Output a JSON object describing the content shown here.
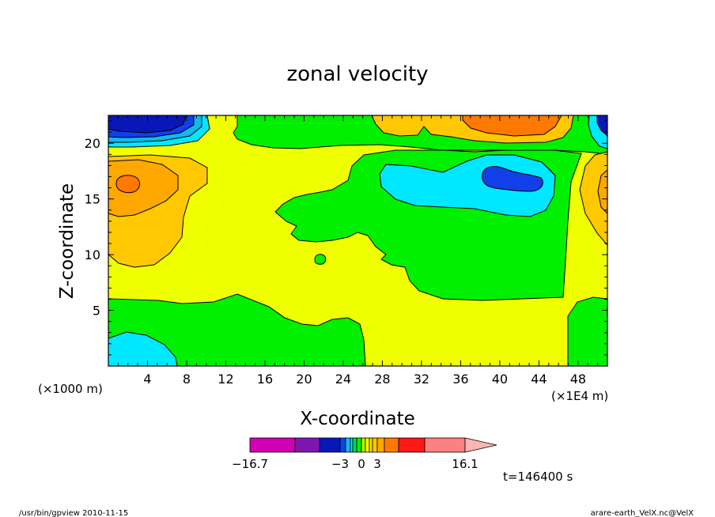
{
  "chart_data": {
    "type": "heatmap",
    "title": "zonal velocity",
    "xlabel": "X-coordinate",
    "ylabel": "Z-coordinate",
    "x_ticks": [
      "4",
      "8",
      "12",
      "16",
      "20",
      "24",
      "28",
      "32",
      "36",
      "40",
      "44",
      "48"
    ],
    "y_ticks": [
      "5",
      "10",
      "15",
      "20"
    ],
    "xlim": [
      0,
      51
    ],
    "ylim": [
      0,
      22.5
    ],
    "x_unit": "(×1E4 m)",
    "y_unit": "(×1000 m)",
    "colorbar": {
      "tick_labels": [
        "−16.7",
        "−3",
        "0",
        "3",
        "16.1"
      ],
      "min": -16.7,
      "max": 16.1,
      "colors": [
        "#d000b4",
        "#7d16b0",
        "#0a17b8",
        "#1240e8",
        "#12b8ee",
        "#00e8ff",
        "#00dc50",
        "#00f000",
        "#b8f000",
        "#f0ff00",
        "#ffe000",
        "#ffc800",
        "#ffa800",
        "#ff7800",
        "#ff1818",
        "#ff8080",
        "#ffb4b4"
      ]
    },
    "regions": [
      {
        "feature": "minimum",
        "x": 4,
        "z": 22,
        "range": "≈ −16 to −9"
      },
      {
        "feature": "maximum",
        "x": 2,
        "z": 16.5,
        "range": "≈ 4 to 6"
      },
      {
        "feature": "minimum",
        "x": 41,
        "z": 17,
        "range": "≈ −9 to −6"
      },
      {
        "feature": "maximum",
        "x": 42,
        "z": 22,
        "range": "≈ 4 to 6"
      },
      {
        "feature": "minimum",
        "x": 3,
        "z": 1.5,
        "range": "≈ −3 to −1"
      }
    ],
    "colors": {
      "yellow": "#f0ff00",
      "green": "#00f000",
      "cyan": "#00e8ff",
      "light_blue": "#12b8ee",
      "blue": "#1240e8",
      "dark_blue": "#0a17b8",
      "light_orange": "#ffc800",
      "orange": "#ffa800",
      "deep_orange": "#ff7800"
    }
  },
  "time_label": "t=146400 s",
  "footer": {
    "left": "/usr/bin/gpview   2010-11-15",
    "right": "arare-earth_VelX.nc@VelX"
  }
}
